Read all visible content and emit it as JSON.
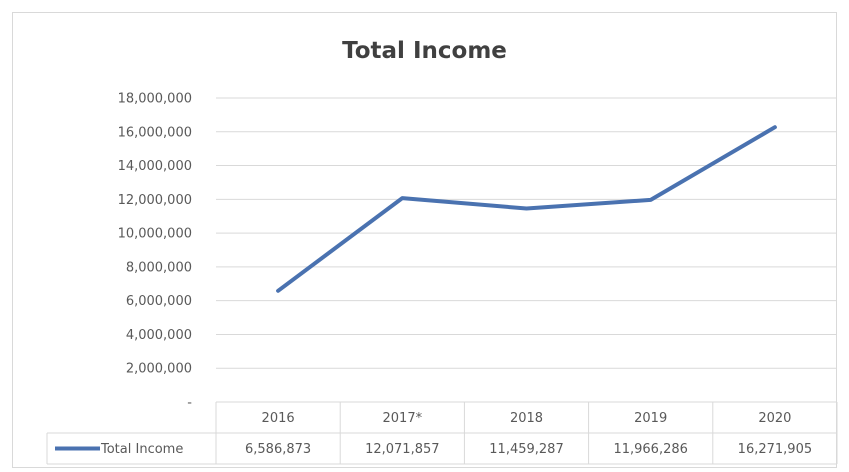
{
  "chart_data": {
    "type": "line",
    "title": "Total Income",
    "categories": [
      "2016",
      "2017*",
      "2018",
      "2019",
      "2020"
    ],
    "series": [
      {
        "name": "Total Income",
        "values": [
          6586873,
          12071857,
          11459287,
          11966286,
          16271905
        ]
      }
    ],
    "table_values": [
      "6,586,873",
      "12,071,857",
      "11,459,287",
      "11,966,286",
      "16,271,905"
    ],
    "y_tick_labels": [
      "-",
      "2,000,000",
      "4,000,000",
      "6,000,000",
      "8,000,000",
      "10,000,000",
      "12,000,000",
      "14,000,000",
      "16,000,000",
      "18,000,000"
    ],
    "ylim": [
      0,
      18000000
    ],
    "ytick_step": 2000000,
    "grid": true,
    "legend_placement": "data-table",
    "colors": {
      "line": "#4a72b0",
      "grid": "#d9d9d9",
      "text": "#595959"
    }
  }
}
